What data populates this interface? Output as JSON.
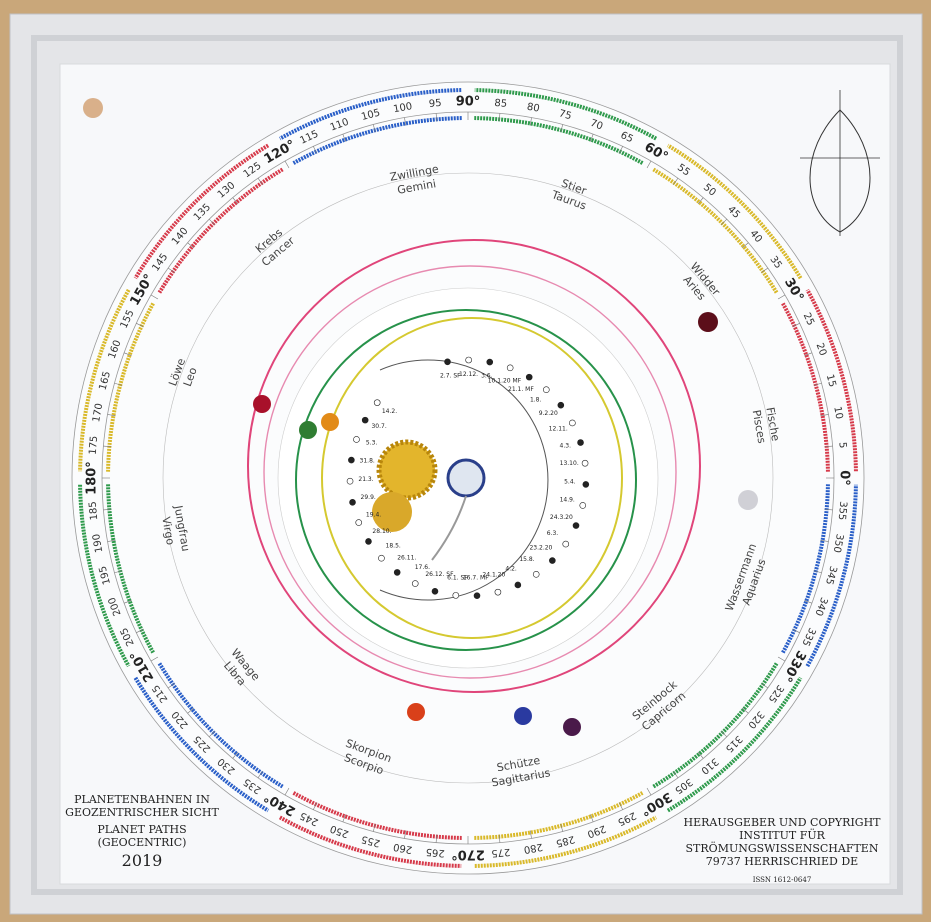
{
  "board": {
    "ring_labels": [
      "0°",
      "5",
      "10",
      "15",
      "20",
      "25",
      "30°",
      "35",
      "40",
      "45",
      "50",
      "55",
      "60°",
      "65",
      "70",
      "75",
      "80",
      "85",
      "90°",
      "95",
      "100",
      "105",
      "110",
      "115",
      "120°",
      "125",
      "130",
      "135",
      "140",
      "145",
      "150°",
      "155",
      "160",
      "165",
      "170",
      "175",
      "180°",
      "185",
      "190",
      "195",
      "200",
      "205",
      "210°",
      "215",
      "220",
      "225",
      "230",
      "235",
      "240°",
      "245",
      "250",
      "255",
      "260",
      "265",
      "270°",
      "275",
      "280",
      "285",
      "290",
      "295",
      "300°",
      "305",
      "310",
      "315",
      "320",
      "325",
      "330°",
      "335",
      "340",
      "345",
      "350",
      "355"
    ],
    "constellations": [
      {
        "de": "Zwillinge",
        "en": "Gemini"
      },
      {
        "de": "Stier",
        "en": "Taurus"
      },
      {
        "de": "Widder",
        "en": "Aries"
      },
      {
        "de": "Fische",
        "en": "Pisces"
      },
      {
        "de": "Wassermann",
        "en": "Aquarius"
      },
      {
        "de": "Steinbock",
        "en": "Capricorn"
      },
      {
        "de": "Schütze",
        "en": "Sagittarius"
      },
      {
        "de": "Skorpion",
        "en": "Scorpio"
      },
      {
        "de": "Waage",
        "en": "Libra"
      },
      {
        "de": "Jungfrau",
        "en": "Virgo"
      },
      {
        "de": "Löwe",
        "en": "Leo"
      },
      {
        "de": "Krebs",
        "en": "Cancer"
      }
    ],
    "left_text": [
      "PLANETENBAHNEN IN",
      "GEOZENTRISCHER SICHT",
      "PLANET PATHS",
      "(GEOCENTRIC)",
      "2019"
    ],
    "right_text": [
      "HERAUSGEBER UND COPYRIGHT",
      "INSTITUT FÜR",
      "STRÖMUNGSWISSENSCHAFTEN",
      "79737 HERRISCHRIED DE",
      "ISSN 1612-0647"
    ],
    "dates": [
      "2.7. SF",
      "12.12.",
      "3.6.",
      "10.1.20 MF",
      "21.1. MF",
      "1.8.",
      "9.2.20",
      "12.11.",
      "4.3.",
      "13.10.",
      "5.4.",
      "14.9.",
      "24.3.20",
      "6.3.",
      "23.2.20",
      "15.8.",
      "4.2.",
      "24.1.20",
      "16.7. MF",
      "6.1. SF",
      "26.12. SF",
      "17.6.",
      "26.11.",
      "18.5.",
      "28.10.",
      "19.4.",
      "29.9.",
      "21.3.",
      "31.8.",
      "5.3.",
      "30.7.",
      "14.2."
    ]
  }
}
